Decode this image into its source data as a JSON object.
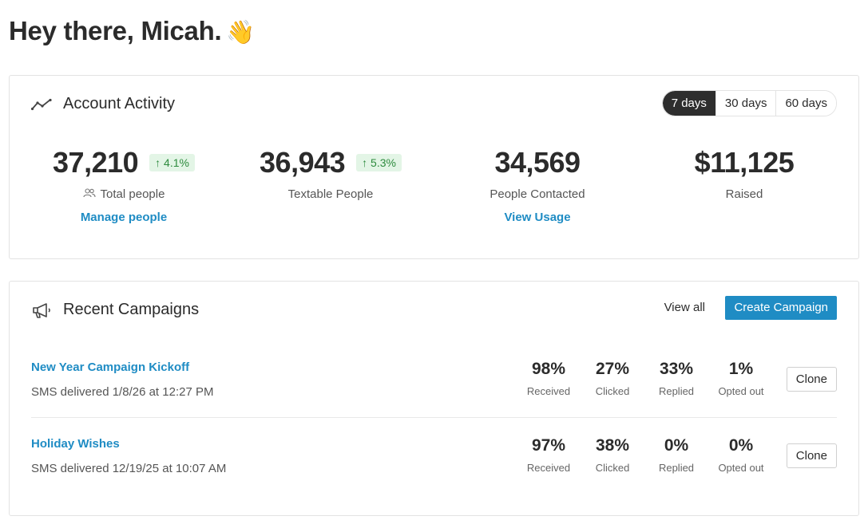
{
  "greeting": {
    "text": "Hey there, Micah.",
    "emoji": "👋"
  },
  "activity": {
    "title": "Account Activity",
    "icon": "line-chart-icon",
    "ranges": [
      "7 days",
      "30 days",
      "60 days"
    ],
    "selected_range": "7 days",
    "stats": [
      {
        "value": "37,210",
        "delta": "↑ 4.1%",
        "label": "Total people",
        "icon": "people-icon",
        "link": "Manage people"
      },
      {
        "value": "36,943",
        "delta": "↑ 5.3%",
        "label": "Textable People"
      },
      {
        "value": "34,569",
        "label": "People Contacted",
        "link": "View Usage"
      },
      {
        "value": "$11,125",
        "label": "Raised"
      }
    ]
  },
  "campaigns": {
    "title": "Recent Campaigns",
    "icon": "megaphone-icon",
    "view_all": "View all",
    "create_label": "Create Campaign",
    "clone_label": "Clone",
    "metric_labels": [
      "Received",
      "Clicked",
      "Replied",
      "Opted out"
    ],
    "rows": [
      {
        "name": "New Year Campaign Kickoff",
        "sub": "SMS delivered 1/8/26 at 12:27 PM",
        "metrics": [
          "98%",
          "27%",
          "33%",
          "1%"
        ]
      },
      {
        "name": "Holiday Wishes",
        "sub": "SMS delivered 12/19/25 at 10:07 AM",
        "metrics": [
          "97%",
          "38%",
          "0%",
          "0%"
        ]
      }
    ]
  },
  "colors": {
    "accent": "#1f8cc4",
    "positive": "#2e8b3e",
    "positive_bg": "#e3f5e6",
    "dark": "#2e2e2e"
  }
}
